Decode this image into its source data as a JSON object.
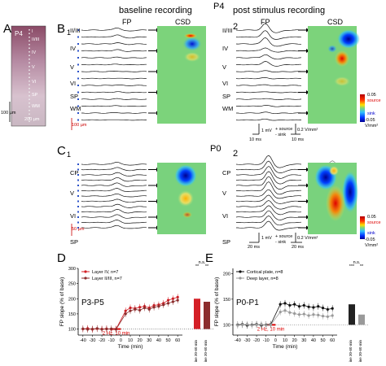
{
  "figure": {
    "panel_labels": [
      "A",
      "B",
      "C",
      "D",
      "E"
    ],
    "panel_subs": {
      "b1": "1",
      "b2": "2",
      "c1": "1",
      "c2": "2"
    },
    "headings": {
      "baseline": "baseline recording",
      "post": "post stimulus recording",
      "p4": "P4",
      "p0": "P0"
    },
    "column_labels": {
      "fp": "FP",
      "csd": "CSD"
    },
    "panel_a": {
      "age": "P4",
      "layers": [
        "I",
        "II/III",
        "IV",
        "V",
        "VI",
        "SP",
        "WM"
      ],
      "scale_200": "200 µm",
      "scale_100": "100 µm"
    },
    "panel_b": {
      "layer_labels": [
        "II/III",
        "IV",
        "V",
        "VI",
        "SP",
        "WM"
      ],
      "depth_scale": "100 µm",
      "fp_scale_mv": "1 mV",
      "fp_scale_ms": "10 ms",
      "csd_scale": "0.2 V/mm²",
      "csd_time": "10 ms",
      "legend_source": "+ source",
      "legend_sink": "- sink",
      "cbar_top": "0.05",
      "cbar_top_label": "source",
      "cbar_bottom": "-0.05",
      "cbar_bottom_label": "sink",
      "cbar_unit": "V/mm²"
    },
    "panel_c": {
      "layer_labels": [
        "CP",
        "V",
        "VI",
        "SP"
      ],
      "depth_scale": "50 µm",
      "fp_scale_mv": "1 mV",
      "fp_scale_ms": "20 ms",
      "csd_scale": "0.2 V/mm²",
      "csd_time": "20 ms",
      "legend_source": "+ source",
      "legend_sink": "- sink",
      "cbar_top": "0.05",
      "cbar_top_label": "source",
      "cbar_bottom": "-0.05",
      "cbar_bottom_label": "sink",
      "cbar_unit": "V/mm²"
    }
  },
  "chart_data": [
    {
      "type": "line",
      "panel": "D",
      "title": "P3-P5",
      "xlabel": "Time (min)",
      "ylabel": "FP slope (% of base)",
      "x_ticks": [
        "-40",
        "-30",
        "-20",
        "-10",
        "0",
        "10",
        "20",
        "30",
        "40",
        "50",
        "60"
      ],
      "y_ticks": [
        "100",
        "150",
        "200",
        "250",
        "300"
      ],
      "xlim": [
        -45,
        65
      ],
      "ylim": [
        80,
        300
      ],
      "stim_label": "2 Hz, 10 min",
      "legend_position": "top-left",
      "series": [
        {
          "name": "Layer IV, n=7",
          "color": "#d41f26",
          "x": [
            -40,
            -35,
            -30,
            -25,
            -20,
            -15,
            -10,
            -5,
            5,
            10,
            15,
            20,
            25,
            30,
            35,
            40,
            45,
            50,
            55,
            60
          ],
          "y": [
            100,
            102,
            99,
            101,
            100,
            101,
            99,
            100,
            160,
            170,
            168,
            172,
            175,
            170,
            178,
            180,
            185,
            195,
            200,
            205
          ]
        },
        {
          "name": "Layer II/III, n=7",
          "color": "#8c2d2d",
          "x": [
            -40,
            -35,
            -30,
            -25,
            -20,
            -15,
            -10,
            -5,
            5,
            10,
            15,
            20,
            25,
            30,
            35,
            40,
            45,
            50,
            55,
            60
          ],
          "y": [
            101,
            99,
            100,
            102,
            99,
            100,
            101,
            99,
            150,
            160,
            165,
            162,
            170,
            165,
            172,
            175,
            180,
            185,
            190,
            195
          ]
        }
      ],
      "bars": {
        "categories": [
          "baseline\n30-60 min",
          "baseline\n30-60 min"
        ],
        "values": [
          200,
          190
        ],
        "colors": [
          "#d41f26",
          "#8c2d2d"
        ],
        "sig": [
          "**",
          "n.s.",
          "**"
        ]
      }
    },
    {
      "type": "line",
      "panel": "E",
      "title": "P0-P1",
      "xlabel": "Time (min)",
      "ylabel": "FP slope (% of base)",
      "x_ticks": [
        "-40",
        "-30",
        "-20",
        "-10",
        "0",
        "10",
        "20",
        "30",
        "40",
        "50",
        "60"
      ],
      "y_ticks": [
        "100",
        "150",
        "200"
      ],
      "xlim": [
        -45,
        65
      ],
      "ylim": [
        80,
        210
      ],
      "stim_label": "2 Hz, 10 min",
      "legend_position": "top-left",
      "series": [
        {
          "name": "Cortical plate, n=8",
          "color": "#111111",
          "x": [
            -40,
            -35,
            -30,
            -25,
            -20,
            -15,
            -10,
            -5,
            5,
            10,
            15,
            20,
            25,
            30,
            35,
            40,
            45,
            50,
            55,
            60
          ],
          "y": [
            100,
            101,
            99,
            100,
            101,
            99,
            100,
            101,
            140,
            142,
            138,
            140,
            136,
            138,
            135,
            134,
            136,
            133,
            130,
            132
          ]
        },
        {
          "name": "Deep layer, n=8",
          "color": "#9a9a9a",
          "x": [
            -40,
            -35,
            -30,
            -25,
            -20,
            -15,
            -10,
            -5,
            5,
            10,
            15,
            20,
            25,
            30,
            35,
            40,
            45,
            50,
            55,
            60
          ],
          "y": [
            99,
            100,
            101,
            99,
            100,
            101,
            99,
            100,
            125,
            128,
            124,
            122,
            120,
            121,
            118,
            120,
            119,
            117,
            116,
            118
          ]
        }
      ],
      "bars": {
        "categories": [
          "baseline\n30-60 min",
          "baseline\n30-60 min"
        ],
        "values": [
          140,
          120
        ],
        "colors": [
          "#222222",
          "#9a9a9a"
        ],
        "sig": [
          "***",
          "n.s.",
          "**"
        ]
      }
    }
  ]
}
